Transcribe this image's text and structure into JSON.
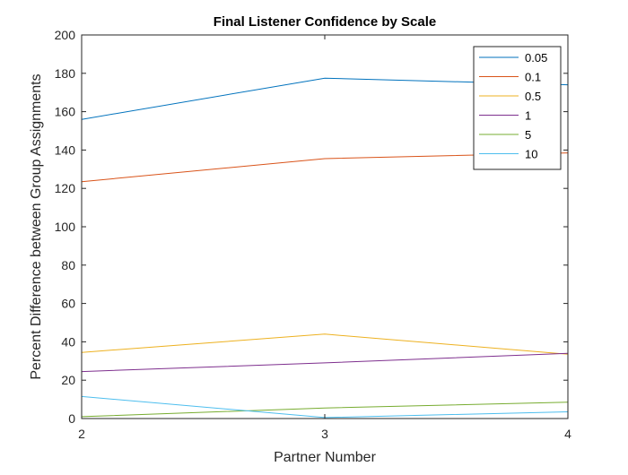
{
  "chart_data": {
    "type": "line",
    "title": "Final Listener Confidence by Scale",
    "xlabel": "Partner Number",
    "ylabel": "Percent Difference between Group Assignments",
    "x": [
      2,
      3,
      4
    ],
    "xlim": [
      2,
      4
    ],
    "ylim": [
      0,
      200
    ],
    "xticks": [
      "2",
      "3",
      "4"
    ],
    "yticks": [
      "0",
      "20",
      "40",
      "60",
      "80",
      "100",
      "120",
      "140",
      "160",
      "180",
      "200"
    ],
    "grid": false,
    "legend_position": "top-right",
    "series": [
      {
        "name": "0.05",
        "color": "#0072BD",
        "values": [
          156,
          177.5,
          174
        ]
      },
      {
        "name": "0.1",
        "color": "#D95319",
        "values": [
          123.5,
          135.5,
          138.5
        ]
      },
      {
        "name": "0.5",
        "color": "#EDB120",
        "values": [
          34.5,
          44,
          33.5
        ]
      },
      {
        "name": "1",
        "color": "#7E2F8E",
        "values": [
          24.5,
          29,
          34
        ]
      },
      {
        "name": "5",
        "color": "#77AC30",
        "values": [
          1,
          5.5,
          8.5
        ]
      },
      {
        "name": "10",
        "color": "#4DBEEE",
        "values": [
          11.5,
          0.5,
          3.5
        ]
      }
    ]
  }
}
